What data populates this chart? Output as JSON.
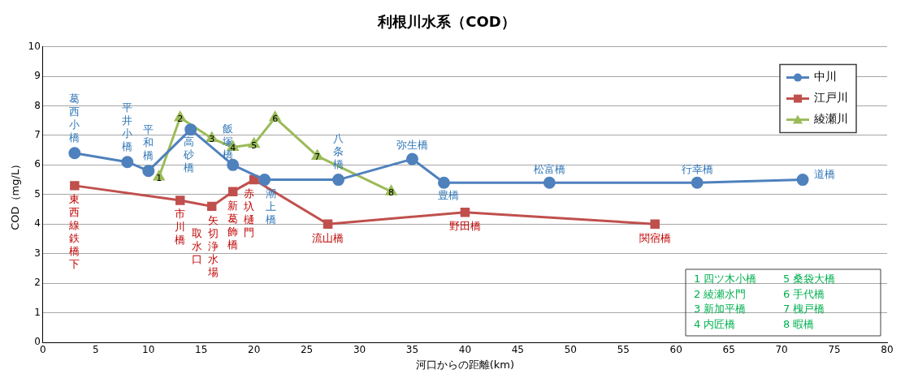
{
  "chart_data": {
    "type": "line",
    "title": "利根川水系（COD）",
    "xlabel": "河口からの距離(km)",
    "ylabel": "COD（mg/L）",
    "xlim": [
      0,
      80
    ],
    "xticks": [
      0,
      5,
      10,
      15,
      20,
      25,
      30,
      35,
      40,
      45,
      50,
      55,
      60,
      65,
      70,
      75,
      80
    ],
    "ylim": [
      0,
      10
    ],
    "yticks": [
      0,
      1,
      2,
      3,
      4,
      5,
      6,
      7,
      8,
      9,
      10
    ],
    "grid": "y",
    "legend": "top right",
    "line_style": "solid",
    "series": [
      {
        "name": "中川",
        "color": "#4f81bd",
        "marker": "circle",
        "x": [
          3,
          8,
          10,
          14,
          18,
          21,
          28,
          35,
          38,
          48,
          62,
          72
        ],
        "values": [
          6.4,
          6.1,
          5.8,
          7.2,
          6.0,
          5.5,
          5.5,
          6.2,
          5.4,
          5.4,
          5.4,
          5.5
        ]
      },
      {
        "name": "江戸川",
        "color": "#c0504d",
        "marker": "square",
        "x": [
          3,
          13,
          16,
          18,
          20,
          27,
          40,
          58
        ],
        "values": [
          5.3,
          4.8,
          4.6,
          5.1,
          5.5,
          4.0,
          4.4,
          4.0
        ]
      },
      {
        "name": "綾瀬川",
        "color": "#9bbb59",
        "marker": "triangle",
        "x": [
          11,
          13,
          16,
          18,
          20,
          22,
          26,
          33
        ],
        "values": [
          5.6,
          7.6,
          6.9,
          6.6,
          6.7,
          7.6,
          6.3,
          5.1
        ]
      }
    ],
    "annotations": [
      {
        "text": "葛西小橋",
        "x": 3,
        "y": 6.4
      },
      {
        "text": "平井小橋",
        "x": 8,
        "y": 6.1
      },
      {
        "text": "平和橋",
        "x": 10,
        "y": 5.8
      },
      {
        "text": "高砂橋",
        "x": 14,
        "y": 7.2
      },
      {
        "text": "飯塚橋",
        "x": 18,
        "y": 6.0
      },
      {
        "text": "潮上橋",
        "x": 21,
        "y": 5.5
      },
      {
        "text": "八条橋",
        "x": 28,
        "y": 5.5
      },
      {
        "text": "弥生橋",
        "x": 35,
        "y": 6.2
      },
      {
        "text": "豊橋",
        "x": 38,
        "y": 5.4
      },
      {
        "text": "松富橋",
        "x": 48,
        "y": 5.4
      },
      {
        "text": "行幸橋",
        "x": 62,
        "y": 5.4
      },
      {
        "text": "道橋",
        "x": 72,
        "y": 5.5
      },
      {
        "text": "東西線鉄橋下",
        "x": 3,
        "y": 5.3
      },
      {
        "text": "市川橋",
        "x": 13,
        "y": 4.8
      },
      {
        "text": "矢切浄水場",
        "x": 16,
        "y": 4.6
      },
      {
        "text": "新葛飾橋",
        "x": 18,
        "y": 5.1
      },
      {
        "text": "赤圦樋門",
        "x": 20,
        "y": 5.5
      },
      {
        "text": "流山橋",
        "x": 27,
        "y": 4.0
      },
      {
        "text": "野田橋",
        "x": 40,
        "y": 4.4
      },
      {
        "text": "関宿橋",
        "x": 58,
        "y": 4.0
      },
      {
        "text": "1",
        "x": 11,
        "y": 5.6
      },
      {
        "text": "2",
        "x": 13,
        "y": 7.6
      },
      {
        "text": "3",
        "x": 16,
        "y": 6.9
      },
      {
        "text": "4",
        "x": 18,
        "y": 6.6
      },
      {
        "text": "5",
        "x": 20,
        "y": 6.7
      },
      {
        "text": "6",
        "x": 22,
        "y": 7.6
      },
      {
        "text": "7",
        "x": 26,
        "y": 6.3
      },
      {
        "text": "8",
        "x": 33,
        "y": 5.1
      },
      {
        "text": "取水口",
        "x": 16,
        "y": 4.6
      },
      "1 四ツ木小橋",
      "2 綾瀬水門",
      "3 新加平橋",
      "4 内匠橋",
      "5 桑袋大橋",
      "6 手代橋",
      "7 槐戸橋",
      "8 暇橋"
    ]
  }
}
